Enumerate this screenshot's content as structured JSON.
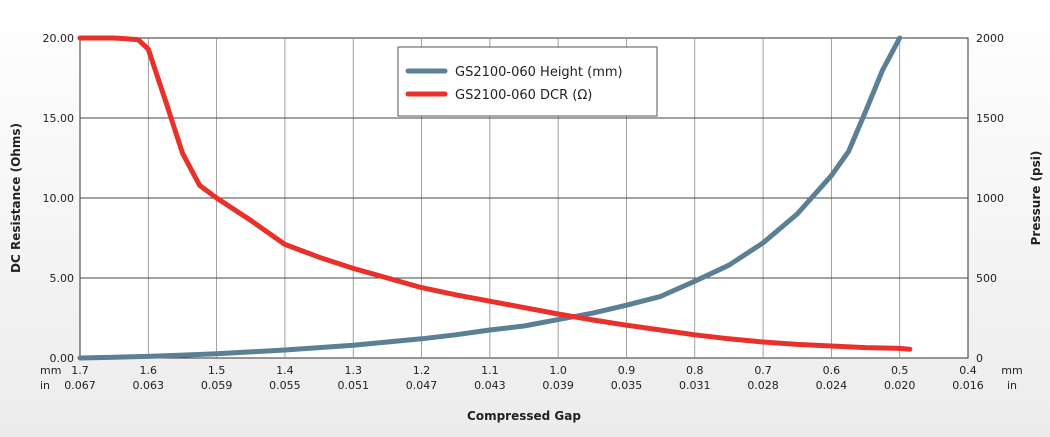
{
  "chart_data": {
    "type": "line",
    "xlabel": "Compressed Gap",
    "ylabel_left": "DC Resistance (Ohms)",
    "ylabel_right": "Pressure (psi)",
    "x_unit_labels": [
      "mm",
      "in"
    ],
    "x_ticks_mm": [
      "1.7",
      "1.6",
      "1.5",
      "1.4",
      "1.3",
      "1.2",
      "1.1",
      "1.0",
      "0.9",
      "0.8",
      "0.7",
      "0.6",
      "0.5",
      "0.4"
    ],
    "x_ticks_in": [
      "0.067",
      "0.063",
      "0.059",
      "0.055",
      "0.051",
      "0.047",
      "0.043",
      "0.039",
      "0.035",
      "0.031",
      "0.028",
      "0.024",
      "0.020",
      "0.016"
    ],
    "xlim": [
      1.7,
      0.4
    ],
    "y_left_ticks": [
      "0.00",
      "5.00",
      "10.00",
      "15.00",
      "20.00"
    ],
    "y_left_lim": [
      0,
      20
    ],
    "y_right_ticks": [
      "0",
      "500",
      "1000",
      "1500",
      "2000"
    ],
    "y_right_lim": [
      0,
      2000
    ],
    "grid": true,
    "legend_position": "top-center",
    "series": [
      {
        "name": "GS2100-060 Height (mm)",
        "axis": "right",
        "color": "#5b7f95",
        "x": [
          1.7,
          1.65,
          1.6,
          1.55,
          1.5,
          1.45,
          1.4,
          1.35,
          1.3,
          1.25,
          1.2,
          1.15,
          1.1,
          1.05,
          1.0,
          0.95,
          0.9,
          0.85,
          0.8,
          0.75,
          0.7,
          0.65,
          0.6,
          0.575,
          0.55,
          0.525,
          0.5
        ],
        "y": [
          0,
          5,
          10,
          18,
          27,
          38,
          50,
          65,
          80,
          100,
          120,
          145,
          175,
          200,
          240,
          280,
          330,
          385,
          480,
          580,
          720,
          900,
          1140,
          1290,
          1540,
          1800,
          2000
        ]
      },
      {
        "name": "GS2100-060 DCR (Ω)",
        "axis": "left",
        "color": "#e8312a",
        "x": [
          1.7,
          1.65,
          1.615,
          1.6,
          1.575,
          1.55,
          1.525,
          1.5,
          1.45,
          1.4,
          1.35,
          1.3,
          1.25,
          1.2,
          1.15,
          1.1,
          1.05,
          1.0,
          0.95,
          0.9,
          0.85,
          0.8,
          0.75,
          0.7,
          0.65,
          0.6,
          0.55,
          0.5,
          0.485
        ],
        "y": [
          20,
          20,
          19.9,
          19.3,
          16.1,
          12.8,
          10.8,
          10.0,
          8.6,
          7.1,
          6.3,
          5.6,
          5.0,
          4.4,
          3.95,
          3.55,
          3.15,
          2.75,
          2.38,
          2.05,
          1.75,
          1.45,
          1.2,
          1.0,
          0.85,
          0.75,
          0.65,
          0.6,
          0.55
        ]
      }
    ]
  }
}
